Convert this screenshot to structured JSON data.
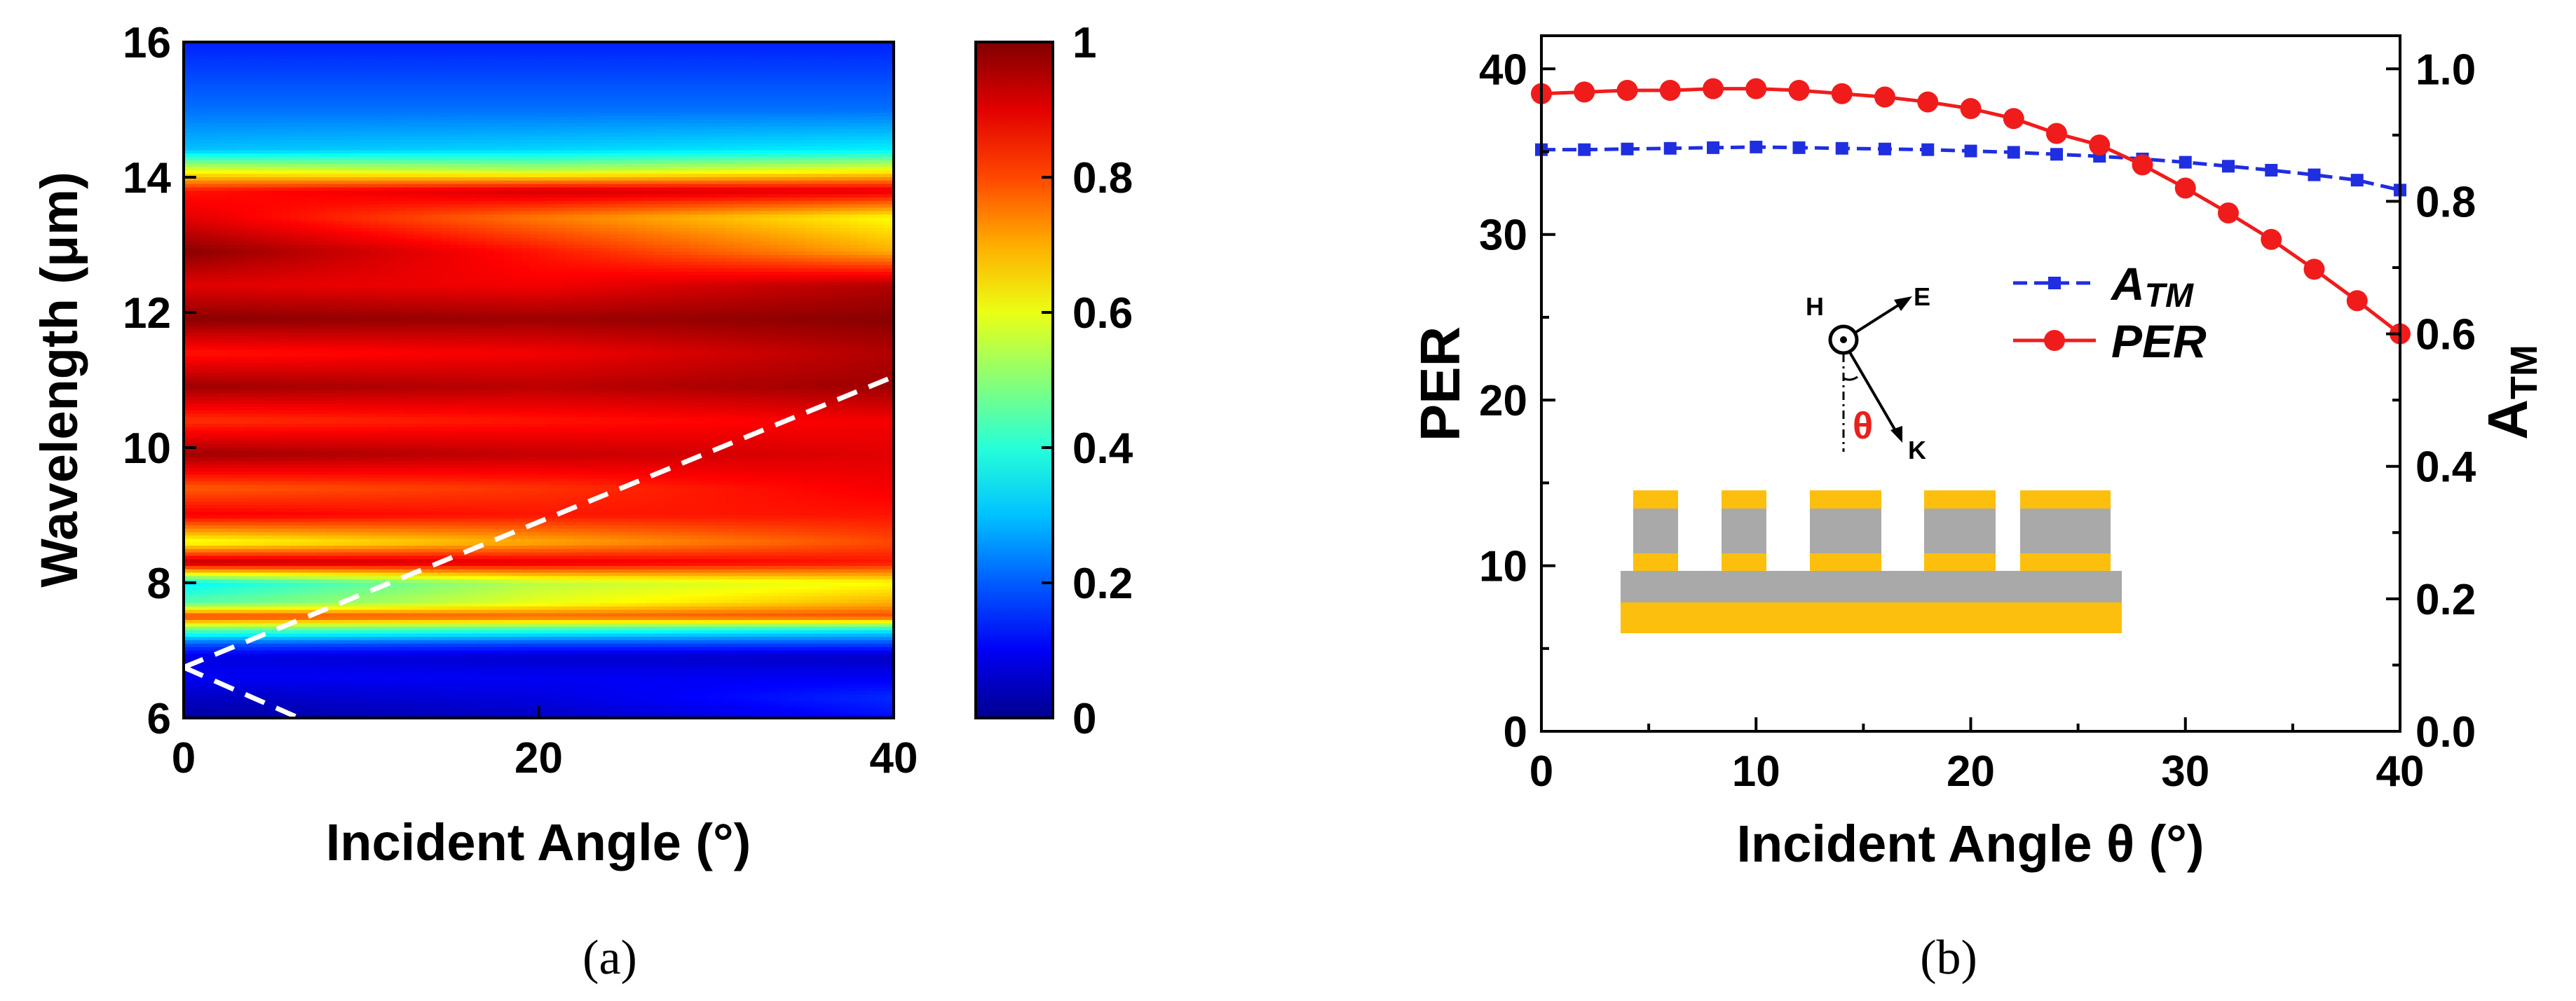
{
  "chart_data": [
    {
      "id": "a",
      "type": "heatmap",
      "panel_label": "(a)",
      "xlabel": "Incident Angle (°)",
      "ylabel": "Wavelength (μm)",
      "xlim": [
        0,
        40
      ],
      "ylim": [
        6,
        16
      ],
      "xticks": [
        0,
        20,
        40
      ],
      "yticks": [
        6,
        8,
        10,
        12,
        14,
        16
      ],
      "colorbar": {
        "range": [
          0,
          1
        ],
        "ticks": [
          "0",
          "0.2",
          "0.4",
          "0.6",
          "0.8",
          "1"
        ]
      },
      "bands": [
        {
          "wl": 6.0,
          "v": [
            0.02,
            0.05,
            0.12
          ]
        },
        {
          "wl": 6.3,
          "v": [
            0.05,
            0.08,
            0.15
          ]
        },
        {
          "wl": 6.6,
          "v": [
            0.1,
            0.1,
            0.1
          ]
        },
        {
          "wl": 6.9,
          "v": [
            0.08,
            0.06,
            0.05
          ]
        },
        {
          "wl": 7.1,
          "v": [
            0.2,
            0.18,
            0.18
          ]
        },
        {
          "wl": 7.3,
          "v": [
            0.45,
            0.4,
            0.35
          ]
        },
        {
          "wl": 7.5,
          "v": [
            0.82,
            0.78,
            0.8
          ]
        },
        {
          "wl": 7.7,
          "v": [
            0.45,
            0.6,
            0.7
          ]
        },
        {
          "wl": 8.0,
          "v": [
            0.35,
            0.55,
            0.62
          ]
        },
        {
          "wl": 8.3,
          "v": [
            0.95,
            0.9,
            0.85
          ]
        },
        {
          "wl": 8.6,
          "v": [
            0.6,
            0.7,
            0.8
          ]
        },
        {
          "wl": 9.0,
          "v": [
            0.88,
            0.85,
            0.85
          ]
        },
        {
          "wl": 9.4,
          "v": [
            0.78,
            0.82,
            0.88
          ]
        },
        {
          "wl": 9.9,
          "v": [
            0.97,
            0.93,
            0.9
          ]
        },
        {
          "wl": 10.4,
          "v": [
            0.82,
            0.85,
            0.88
          ]
        },
        {
          "wl": 10.9,
          "v": [
            0.97,
            0.94,
            0.97
          ]
        },
        {
          "wl": 11.4,
          "v": [
            0.85,
            0.88,
            0.95
          ]
        },
        {
          "wl": 11.9,
          "v": [
            0.99,
            0.97,
            0.99
          ]
        },
        {
          "wl": 12.4,
          "v": [
            0.9,
            0.88,
            0.95
          ]
        },
        {
          "wl": 12.9,
          "v": [
            0.99,
            0.85,
            0.7
          ]
        },
        {
          "wl": 13.4,
          "v": [
            0.9,
            0.75,
            0.62
          ]
        },
        {
          "wl": 13.8,
          "v": [
            0.85,
            0.92,
            0.9
          ]
        },
        {
          "wl": 14.1,
          "v": [
            0.6,
            0.55,
            0.62
          ]
        },
        {
          "wl": 14.4,
          "v": [
            0.3,
            0.32,
            0.35
          ]
        },
        {
          "wl": 15.0,
          "v": [
            0.22,
            0.22,
            0.22
          ]
        },
        {
          "wl": 15.5,
          "v": [
            0.18,
            0.18,
            0.18
          ]
        },
        {
          "wl": 16.0,
          "v": [
            0.14,
            0.14,
            0.14
          ]
        }
      ],
      "dashed_lines": [
        {
          "points": [
            [
              0,
              6.75
            ],
            [
              40,
              11.05
            ]
          ]
        },
        {
          "points": [
            [
              0,
              6.75
            ],
            [
              6.5,
              6.0
            ]
          ]
        }
      ]
    },
    {
      "id": "b",
      "type": "line",
      "panel_label": "(b)",
      "xlabel": "Incident Angle θ (°)",
      "ylabel": "PER",
      "y2label": "ATM",
      "xlim": [
        0,
        40
      ],
      "ylim": [
        0,
        42
      ],
      "y2lim": [
        0,
        1.05
      ],
      "xticks": [
        0,
        10,
        20,
        30,
        40
      ],
      "yticks": [
        0,
        10,
        20,
        30,
        40
      ],
      "y2ticks": [
        "0.0",
        "0.2",
        "0.4",
        "0.6",
        "0.8",
        "1.0"
      ],
      "series": [
        {
          "name": "ATM",
          "axis": "right",
          "color": "#1f2ee0",
          "x": [
            0,
            2,
            4,
            6,
            8,
            10,
            12,
            14,
            16,
            18,
            20,
            22,
            24,
            26,
            28,
            30,
            32,
            34,
            36,
            38,
            40
          ],
          "values": [
            0.878,
            0.878,
            0.879,
            0.88,
            0.881,
            0.882,
            0.881,
            0.88,
            0.879,
            0.878,
            0.876,
            0.874,
            0.871,
            0.868,
            0.864,
            0.859,
            0.853,
            0.847,
            0.84,
            0.832,
            0.817
          ]
        },
        {
          "name": "PER",
          "axis": "left",
          "color": "#f01c1c",
          "x": [
            0,
            2,
            4,
            6,
            8,
            10,
            12,
            14,
            16,
            18,
            20,
            22,
            24,
            26,
            28,
            30,
            32,
            34,
            36,
            38,
            40
          ],
          "values": [
            38.5,
            38.6,
            38.7,
            38.7,
            38.8,
            38.8,
            38.7,
            38.5,
            38.3,
            38.0,
            37.6,
            37.0,
            36.1,
            35.4,
            34.2,
            32.8,
            31.3,
            29.7,
            27.9,
            26.0,
            24.0
          ]
        }
      ],
      "legend": [
        {
          "label": "A",
          "sub": "TM",
          "series": "ATM"
        },
        {
          "label": "PER",
          "sub": "",
          "series": "PER"
        }
      ],
      "inset": {
        "H": "H",
        "E": "E",
        "K": "K",
        "theta": "θ",
        "gold": "#fdbf0d",
        "gray": "#a9a9a9",
        "theta_color": "#e8201e"
      }
    }
  ]
}
